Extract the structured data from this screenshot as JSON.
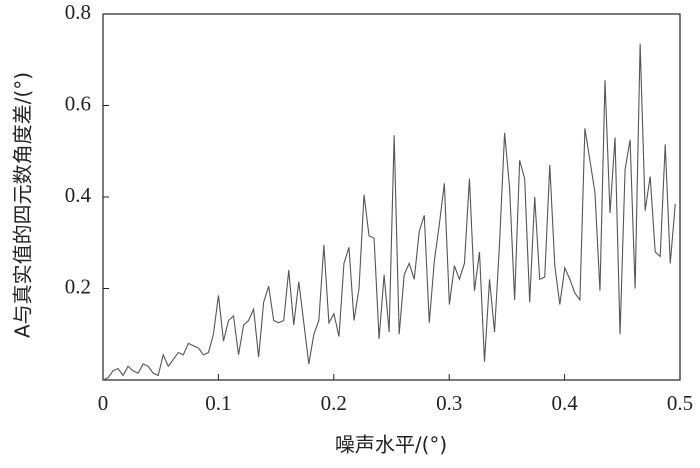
{
  "chart_data": {
    "type": "line",
    "xlabel": "噪声水平/(°)",
    "ylabel": "A与真实值的四元数角度差/(°)",
    "x": [
      0,
      0.00435,
      0.0087,
      0.01305,
      0.0174,
      0.02175,
      0.0261,
      0.03045,
      0.0348,
      0.03915,
      0.0435,
      0.04785,
      0.0522,
      0.05655,
      0.0609,
      0.06525,
      0.0696,
      0.07395,
      0.0783,
      0.08265,
      0.087,
      0.09135,
      0.0957,
      0.10005,
      0.1044,
      0.10875,
      0.1131,
      0.11745,
      0.1218,
      0.12615,
      0.1305,
      0.13485,
      0.1392,
      0.14355,
      0.1479,
      0.15225,
      0.1566,
      0.16095,
      0.1653,
      0.16965,
      0.174,
      0.17835,
      0.1827,
      0.18705,
      0.1914,
      0.19575,
      0.2001,
      0.20445,
      0.2088,
      0.21315,
      0.2175,
      0.22185,
      0.2262,
      0.23055,
      0.2349,
      0.23925,
      0.2436,
      0.24795,
      0.2523,
      0.25665,
      0.261,
      0.26535,
      0.2697,
      0.27405,
      0.2784,
      0.28275,
      0.2871,
      0.29145,
      0.2958,
      0.30015,
      0.3045,
      0.30885,
      0.3132,
      0.31755,
      0.3219,
      0.32625,
      0.3306,
      0.33495,
      0.3393,
      0.34365,
      0.348,
      0.35235,
      0.3567,
      0.36105,
      0.3654,
      0.36975,
      0.3741,
      0.37845,
      0.3828,
      0.38715,
      0.3915,
      0.39585,
      0.4002,
      0.40455,
      0.4089,
      0.41325,
      0.4176,
      0.42195,
      0.4263,
      0.43065,
      0.435,
      0.43935,
      0.4437,
      0.44805,
      0.4524,
      0.45675,
      0.4611,
      0.46545,
      0.4698,
      0.47415,
      0.4785,
      0.48285,
      0.4872,
      0.49155,
      0.4959
    ],
    "series": [
      {
        "color": "#555555",
        "values": [
          0,
          0.005,
          0.02,
          0.025,
          0.01,
          0.03,
          0.02,
          0.015,
          0.035,
          0.03,
          0.015,
          0.01,
          0.055,
          0.03,
          0.045,
          0.06,
          0.055,
          0.08,
          0.075,
          0.07,
          0.055,
          0.06,
          0.1,
          0.185,
          0.085,
          0.13,
          0.14,
          0.055,
          0.12,
          0.13,
          0.155,
          0.05,
          0.17,
          0.205,
          0.13,
          0.125,
          0.13,
          0.24,
          0.12,
          0.215,
          0.125,
          0.035,
          0.1,
          0.13,
          0.295,
          0.125,
          0.145,
          0.095,
          0.255,
          0.29,
          0.13,
          0.2,
          0.405,
          0.315,
          0.31,
          0.09,
          0.23,
          0.105,
          0.535,
          0.1,
          0.23,
          0.255,
          0.22,
          0.325,
          0.36,
          0.125,
          0.26,
          0.34,
          0.43,
          0.165,
          0.25,
          0.22,
          0.255,
          0.44,
          0.195,
          0.28,
          0.04,
          0.22,
          0.105,
          0.3,
          0.54,
          0.42,
          0.175,
          0.48,
          0.44,
          0.17,
          0.4,
          0.22,
          0.225,
          0.47,
          0.25,
          0.165,
          0.245,
          0.22,
          0.19,
          0.175,
          0.55,
          0.48,
          0.41,
          0.195,
          0.655,
          0.365,
          0.53,
          0.1,
          0.46,
          0.525,
          0.2,
          0.735,
          0.37,
          0.445,
          0.28,
          0.27,
          0.515,
          0.255,
          0.385
        ]
      }
    ],
    "xlim": [
      0,
      0.5
    ],
    "xticks": [
      0,
      0.1,
      0.2,
      0.3,
      0.4,
      0.5
    ],
    "ylim": [
      0,
      0.8
    ],
    "yticks": [
      0.2,
      0.4,
      0.6,
      0.8
    ]
  }
}
